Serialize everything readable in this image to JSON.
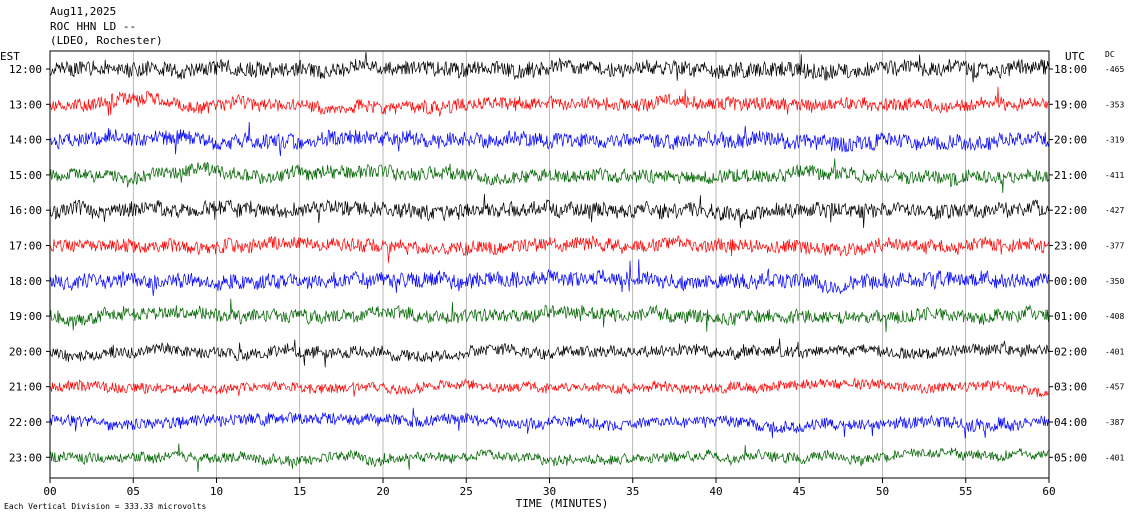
{
  "header": {
    "date": "Aug11,2025",
    "station": "ROC HHN LD --",
    "network": "(LDEO, Rochester)"
  },
  "footer": {
    "scale_note": "Each Vertical Division =  333.33 microvolts"
  },
  "chart_data": {
    "type": "line",
    "title": "",
    "xlabel": "TIME (MINUTES)",
    "x_ticks": [
      "00",
      "05",
      "10",
      "15",
      "20",
      "25",
      "30",
      "35",
      "40",
      "45",
      "50",
      "55",
      "60"
    ],
    "xlim": [
      0,
      60
    ],
    "left_axis_label": "EST",
    "right_axis_label": "UTC",
    "dc_label": "DC",
    "grid": true,
    "colors": [
      "#000000",
      "#ff0000",
      "#0000ff",
      "#006400"
    ],
    "traces": [
      {
        "est": "12:00",
        "utc": "18:00",
        "dc": "-465",
        "color": "#000000"
      },
      {
        "est": "13:00",
        "utc": "19:00",
        "dc": "-353",
        "color": "#ff0000"
      },
      {
        "est": "14:00",
        "utc": "20:00",
        "dc": "-319",
        "color": "#0000ff"
      },
      {
        "est": "15:00",
        "utc": "21:00",
        "dc": "-411",
        "color": "#006400"
      },
      {
        "est": "16:00",
        "utc": "22:00",
        "dc": "-427",
        "color": "#000000"
      },
      {
        "est": "17:00",
        "utc": "23:00",
        "dc": "-377",
        "color": "#ff0000"
      },
      {
        "est": "18:00",
        "utc": "00:00",
        "dc": "-350",
        "color": "#0000ff"
      },
      {
        "est": "19:00",
        "utc": "01:00",
        "dc": "-408",
        "color": "#006400"
      },
      {
        "est": "20:00",
        "utc": "02:00",
        "dc": "-401",
        "color": "#000000"
      },
      {
        "est": "21:00",
        "utc": "03:00",
        "dc": "-457",
        "color": "#ff0000"
      },
      {
        "est": "22:00",
        "utc": "04:00",
        "dc": "-387",
        "color": "#0000ff"
      },
      {
        "est": "23:00",
        "utc": "05:00",
        "dc": "-401",
        "color": "#006400"
      }
    ]
  }
}
